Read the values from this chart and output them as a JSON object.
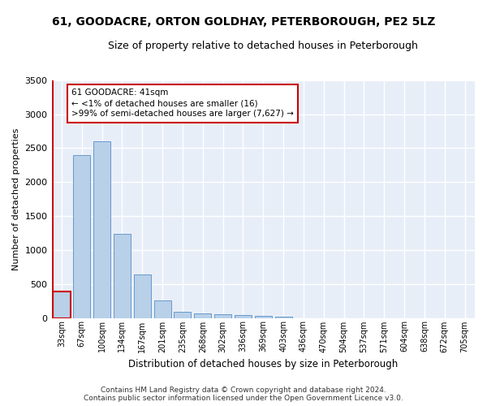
{
  "title": "61, GOODACRE, ORTON GOLDHAY, PETERBOROUGH, PE2 5LZ",
  "subtitle": "Size of property relative to detached houses in Peterborough",
  "xlabel": "Distribution of detached houses by size in Peterborough",
  "ylabel": "Number of detached properties",
  "bar_color": "#b8d0e8",
  "bar_edge_color": "#6699cc",
  "highlight_color": "#cc0000",
  "background_color": "#e8eef8",
  "grid_color": "#ffffff",
  "categories": [
    "33sqm",
    "67sqm",
    "100sqm",
    "134sqm",
    "167sqm",
    "201sqm",
    "235sqm",
    "268sqm",
    "302sqm",
    "336sqm",
    "369sqm",
    "403sqm",
    "436sqm",
    "470sqm",
    "504sqm",
    "537sqm",
    "571sqm",
    "604sqm",
    "638sqm",
    "672sqm",
    "705sqm"
  ],
  "values": [
    390,
    2400,
    2600,
    1240,
    640,
    255,
    95,
    60,
    55,
    45,
    30,
    20,
    0,
    0,
    0,
    0,
    0,
    0,
    0,
    0,
    0
  ],
  "ylim": [
    0,
    3500
  ],
  "yticks": [
    0,
    500,
    1000,
    1500,
    2000,
    2500,
    3000,
    3500
  ],
  "annotation_title": "61 GOODACRE: 41sqm",
  "annotation_line1": "← <1% of detached houses are smaller (16)",
  "annotation_line2": ">99% of semi-detached houses are larger (7,627) →",
  "highlight_bar_index": 0,
  "footer_line1": "Contains HM Land Registry data © Crown copyright and database right 2024.",
  "footer_line2": "Contains public sector information licensed under the Open Government Licence v3.0."
}
